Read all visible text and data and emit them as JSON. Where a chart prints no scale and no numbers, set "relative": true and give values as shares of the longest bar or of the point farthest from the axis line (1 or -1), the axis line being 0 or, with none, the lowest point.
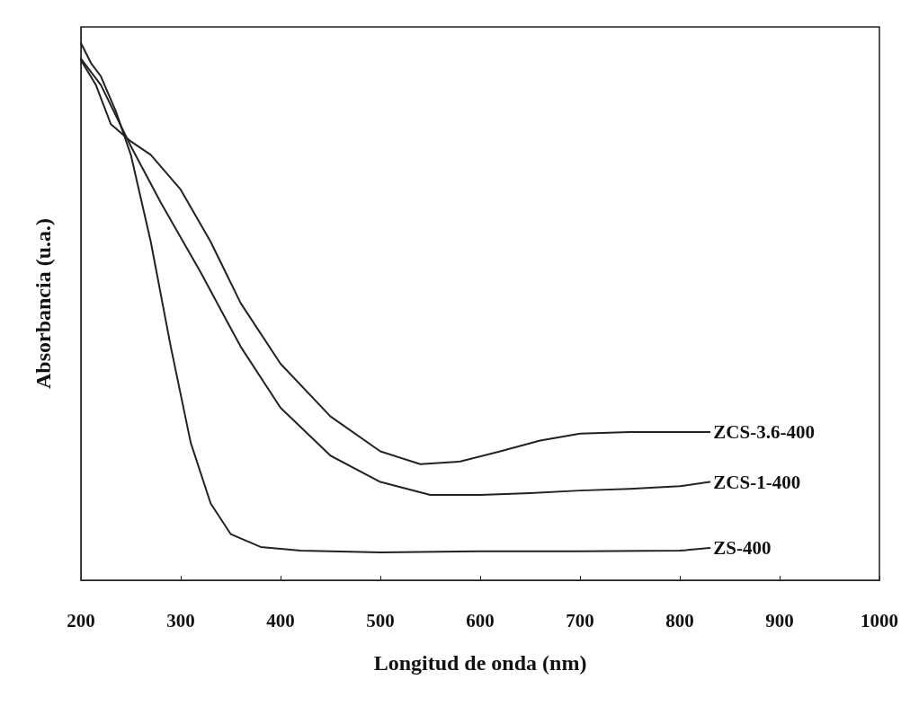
{
  "chart_data": {
    "type": "line",
    "xlabel": "Longitud de onda (nm)",
    "ylabel": "Absorbancia (u.a.)",
    "relative": true,
    "xlim": [
      200,
      1000
    ],
    "xticks": [
      200,
      300,
      400,
      500,
      600,
      700,
      800,
      900,
      1000
    ],
    "tick_labels": "x",
    "grid": false,
    "legend": false,
    "marker": "none",
    "line_style": "solid",
    "series": [
      {
        "name": "ZCS-3.6-400",
        "color": "#222222",
        "x": [
          200,
          215,
          230,
          250,
          270,
          300,
          330,
          360,
          400,
          450,
          500,
          540,
          580,
          620,
          660,
          700,
          750,
          800,
          830
        ],
        "values": [
          0.968,
          0.922,
          0.849,
          0.817,
          0.792,
          0.727,
          0.63,
          0.516,
          0.403,
          0.305,
          0.24,
          0.216,
          0.221,
          0.24,
          0.26,
          0.273,
          0.276,
          0.276,
          0.276
        ]
      },
      {
        "name": "ZCS-1-400",
        "color": "#222222",
        "x": [
          200,
          220,
          250,
          280,
          320,
          360,
          400,
          450,
          500,
          550,
          600,
          650,
          700,
          750,
          800,
          830
        ],
        "values": [
          0.971,
          0.922,
          0.808,
          0.703,
          0.573,
          0.435,
          0.321,
          0.232,
          0.183,
          0.159,
          0.159,
          0.162,
          0.167,
          0.17,
          0.175,
          0.183
        ]
      },
      {
        "name": "ZS-400",
        "color": "#222222",
        "x": [
          200,
          210,
          220,
          235,
          250,
          270,
          290,
          310,
          330,
          350,
          380,
          420,
          500,
          600,
          700,
          800,
          830
        ],
        "values": [
          1.0,
          0.963,
          0.938,
          0.873,
          0.792,
          0.63,
          0.435,
          0.256,
          0.143,
          0.086,
          0.062,
          0.055,
          0.052,
          0.054,
          0.054,
          0.055,
          0.06
        ]
      }
    ]
  }
}
